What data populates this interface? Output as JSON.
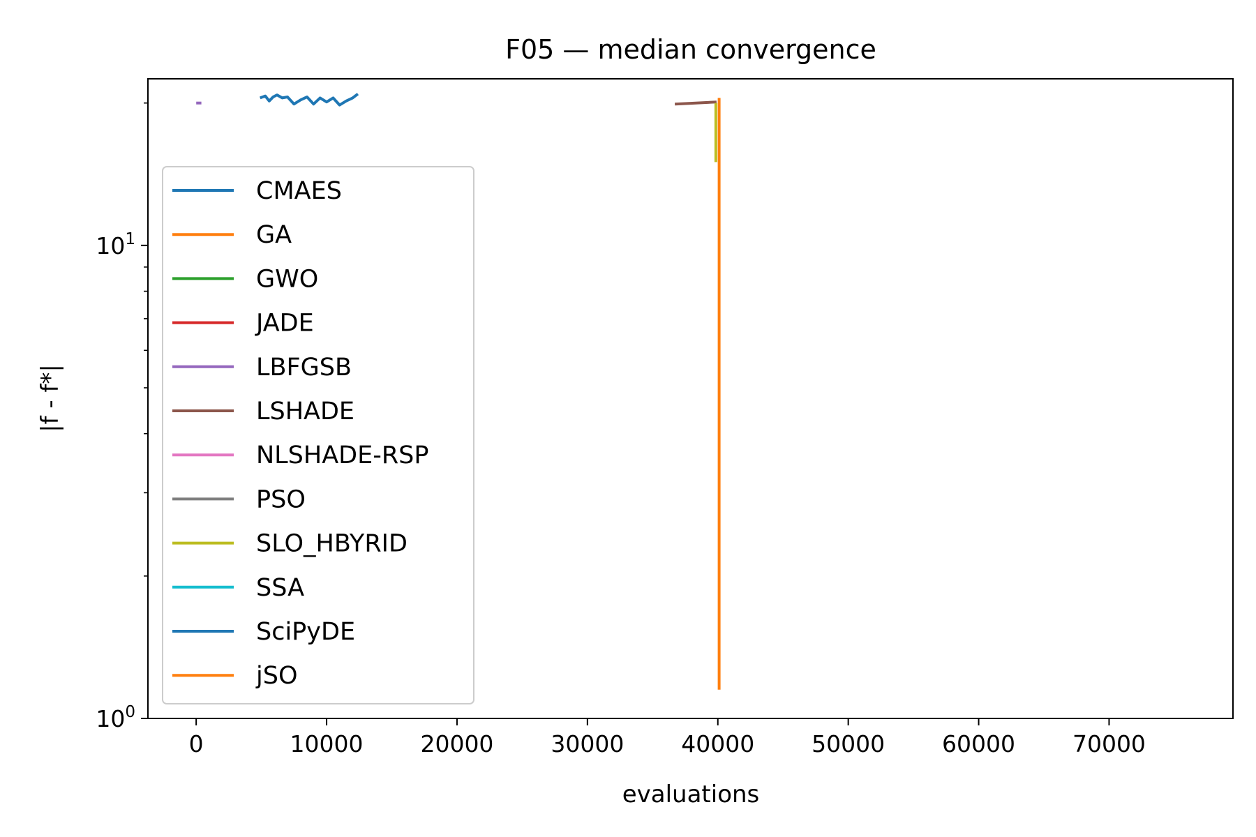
{
  "chart_data": {
    "type": "line",
    "title": "F05 — median convergence",
    "xlabel": "evaluations",
    "ylabel": "|f - f*|",
    "xlim": [
      -3700,
      79500
    ],
    "ylim": [
      1,
      22.5
    ],
    "yscale": "log",
    "x_ticks": [
      {
        "value": 0,
        "label": "0"
      },
      {
        "value": 10000,
        "label": "10000"
      },
      {
        "value": 20000,
        "label": "20000"
      },
      {
        "value": 30000,
        "label": "30000"
      },
      {
        "value": 40000,
        "label": "40000"
      },
      {
        "value": 50000,
        "label": "50000"
      },
      {
        "value": 60000,
        "label": "60000"
      },
      {
        "value": 70000,
        "label": "70000"
      }
    ],
    "y_ticks": [
      {
        "value": 1,
        "base": "10",
        "exp": "0"
      },
      {
        "value": 10,
        "base": "10",
        "exp": "1"
      }
    ],
    "y_minor_ticks": [
      2,
      3,
      4,
      5,
      6,
      7,
      8,
      9,
      20
    ],
    "grid": false,
    "legend_position": "upper-left",
    "series": [
      {
        "name": "CMAES",
        "color": "#1f77b4",
        "x": [
          4900,
          5300,
          5600,
          5900,
          6200,
          6600,
          7000,
          7500,
          8000,
          8500,
          9000,
          9500,
          10000,
          10500,
          11000,
          11500,
          12000,
          12400
        ],
        "y": [
          20.5,
          20.7,
          20.2,
          20.6,
          20.8,
          20.5,
          20.6,
          19.9,
          20.3,
          20.6,
          19.9,
          20.5,
          20.1,
          20.5,
          19.8,
          20.2,
          20.5,
          20.9
        ]
      },
      {
        "name": "GA",
        "color": "#ff7f0e",
        "x": [],
        "y": []
      },
      {
        "name": "GWO",
        "color": "#2ca02c",
        "x": [],
        "y": []
      },
      {
        "name": "JADE",
        "color": "#d62728",
        "x": [],
        "y": []
      },
      {
        "name": "LBFGSB",
        "color": "#9467bd",
        "x": [
          0,
          400
        ],
        "y": [
          20.0,
          20.0
        ]
      },
      {
        "name": "LSHADE",
        "color": "#8c564b",
        "x": [
          36700,
          39900
        ],
        "y": [
          19.9,
          20.1
        ]
      },
      {
        "name": "NLSHADE-RSP",
        "color": "#e377c2",
        "x": [],
        "y": []
      },
      {
        "name": "PSO",
        "color": "#7f7f7f",
        "x": [],
        "y": []
      },
      {
        "name": "SLO_HBYRID",
        "color": "#bcbd22",
        "x": [
          39850,
          39850
        ],
        "y": [
          20.0,
          15.0
        ]
      },
      {
        "name": "SSA",
        "color": "#17becf",
        "x": [],
        "y": []
      },
      {
        "name": "SciPyDE",
        "color": "#1f77b4",
        "x": [],
        "y": []
      },
      {
        "name": "jSO",
        "color": "#ff7f0e",
        "x": [
          40100,
          40100
        ],
        "y": [
          20.5,
          1.15
        ]
      }
    ]
  }
}
